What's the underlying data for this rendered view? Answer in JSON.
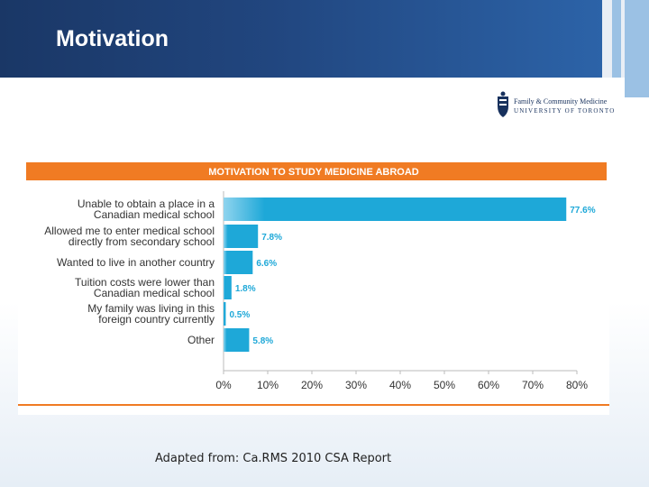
{
  "slide": {
    "title": "Motivation",
    "source": "Adapted from: Ca.RMS 2010 CSA Report"
  },
  "logo": {
    "line1": "Family & Community Medicine",
    "line2": "UNIVERSITY OF TORONTO",
    "icon": "university-crest-icon"
  },
  "colors": {
    "header": "#21467f",
    "accent_orange": "#f07b23",
    "bar": "#1ea8d8",
    "label_blue": "#1ea8d8",
    "stripe_light": "#9bc1e4"
  },
  "chart_data": {
    "type": "bar",
    "orientation": "horizontal",
    "title": "MOTIVATION TO STUDY MEDICINE ABROAD",
    "categories": [
      [
        "Unable to obtain a place in a",
        "Canadian medical school"
      ],
      [
        "Allowed me to enter medical school",
        "directly from secondary school"
      ],
      [
        "Wanted to live in another country"
      ],
      [
        "Tuition costs were lower than",
        "Canadian medical school"
      ],
      [
        "My family was living in this",
        "foreign country currently"
      ],
      [
        "Other"
      ]
    ],
    "values": [
      77.6,
      7.8,
      6.6,
      1.8,
      0.5,
      5.8
    ],
    "value_labels": [
      "77.6%",
      "7.8%",
      "6.6%",
      "1.8%",
      "0.5%",
      "5.8%"
    ],
    "xlim": [
      0,
      80
    ],
    "xticks": [
      0,
      10,
      20,
      30,
      40,
      50,
      60,
      70,
      80
    ],
    "xtick_labels": [
      "0%",
      "10%",
      "20%",
      "30%",
      "40%",
      "50%",
      "60%",
      "70%",
      "80%"
    ],
    "grid": false,
    "legend": "none"
  }
}
